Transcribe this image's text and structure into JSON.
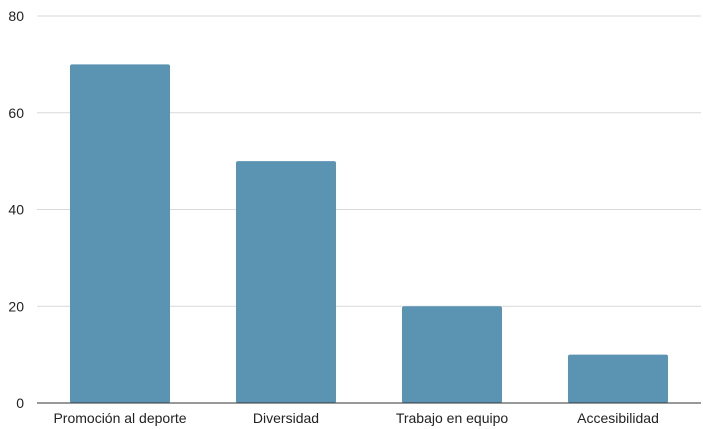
{
  "chart_data": {
    "type": "bar",
    "title": "",
    "xlabel": "",
    "ylabel": "",
    "categories": [
      "Promoción al deporte",
      "Diversidad",
      "Trabajo en equipo",
      "Accesibilidad"
    ],
    "values": [
      70,
      50,
      20,
      10
    ],
    "ylim": [
      0,
      80
    ],
    "yticks": [
      "0",
      "20",
      "40",
      "60",
      "80"
    ],
    "grid": true,
    "legend": "none",
    "bar_color": "#5b93b3"
  }
}
